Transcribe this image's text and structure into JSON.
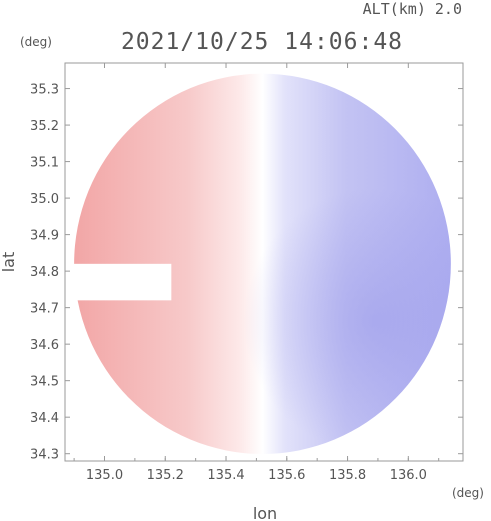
{
  "header": {
    "altitude": "ALT(km) 2.0",
    "timestamp": "2021/10/25 14:06:48"
  },
  "chart_data": {
    "type": "heatmap",
    "title": "2021/10/25 14:06:48",
    "subtitle": "ALT(km) 2.0",
    "xlabel": "lon",
    "ylabel": "lat",
    "x_unit": "(deg)",
    "y_unit": "(deg)",
    "xlim": [
      134.87,
      136.18
    ],
    "ylim": [
      34.28,
      35.37
    ],
    "x_ticks": [
      135.0,
      135.2,
      135.4,
      135.6,
      135.8,
      136.0
    ],
    "x_tick_labels": [
      "135.0",
      "135.2",
      "135.4",
      "135.6",
      "135.8",
      "136.0"
    ],
    "y_ticks": [
      34.3,
      34.4,
      34.5,
      34.6,
      34.7,
      34.8,
      34.9,
      35.0,
      35.1,
      35.2,
      35.3
    ],
    "y_tick_labels": [
      "34.3",
      "34.4",
      "34.5",
      "34.6",
      "34.7",
      "34.8",
      "34.9",
      "35.0",
      "35.1",
      "35.2",
      "35.3"
    ],
    "grid": false,
    "colors": {
      "positive": "#f4b3b3",
      "zero": "#ffffff",
      "negative": "#b8b8f2",
      "axis": "#9a9a9a",
      "text": "#555555"
    },
    "field": {
      "description": "Doppler velocity style field: warm (pink) toward west, cool (blue) toward east, near-zero (white) band along ~135.45-135.5 lon",
      "center": [
        135.52,
        34.82
      ],
      "radius_deg": 0.62,
      "zero_line_lon": 135.48,
      "blocked_sector": {
        "lon": [
          134.87,
          135.22
        ],
        "lat": [
          34.72,
          34.82
        ]
      }
    }
  }
}
